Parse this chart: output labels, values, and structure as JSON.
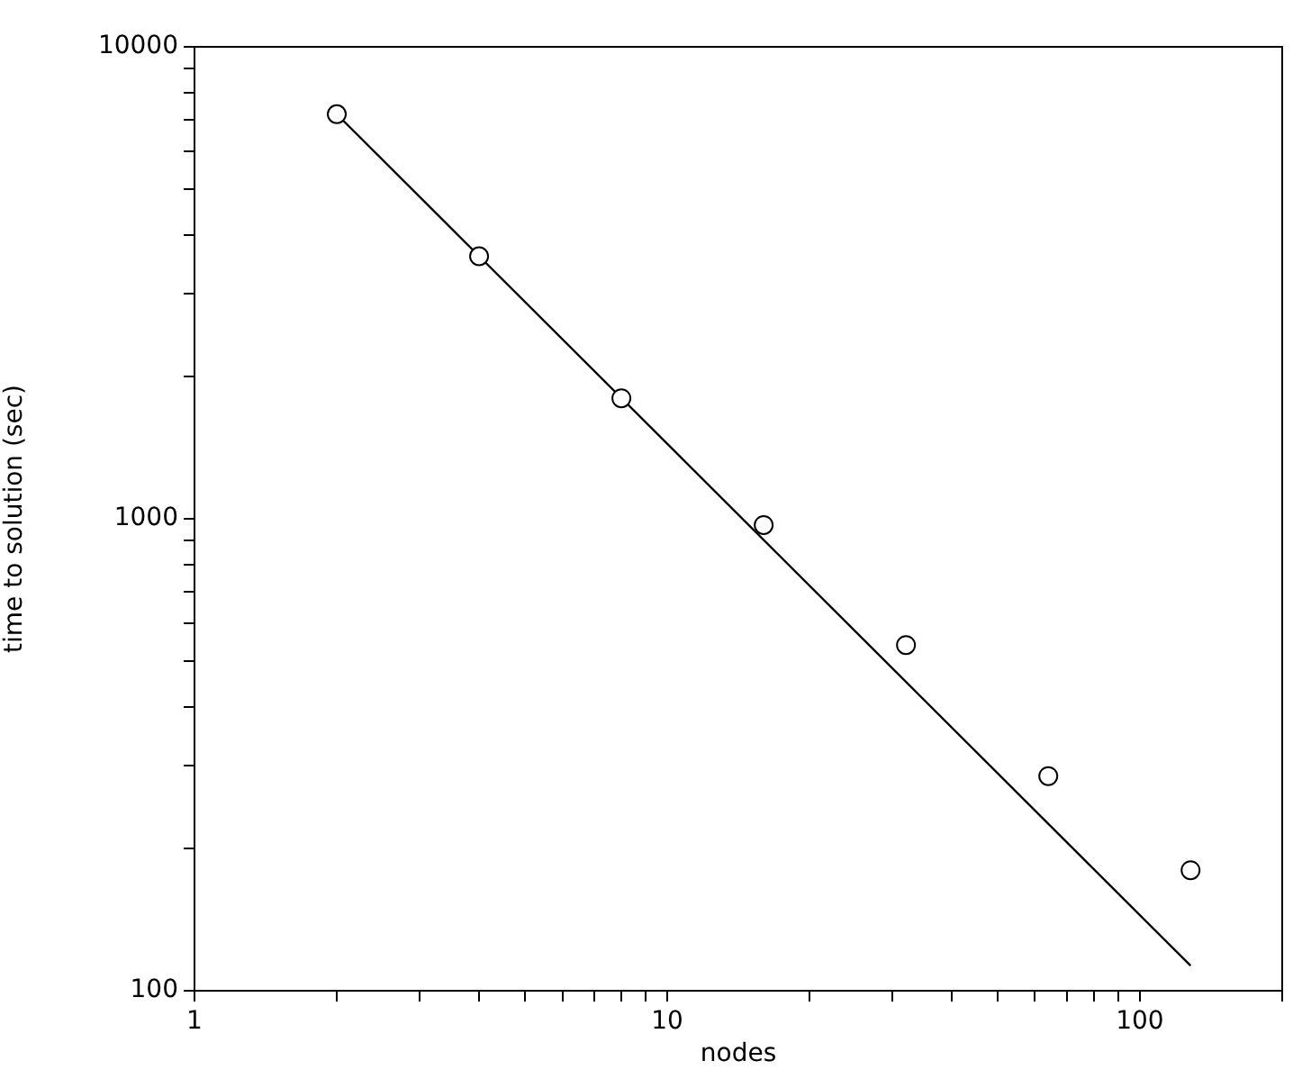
{
  "chart_data": {
    "type": "scatter",
    "xlabel": "nodes",
    "ylabel": "time to solution (sec)",
    "log": "xy",
    "grid": false,
    "legend": false,
    "marker": "circle",
    "xlim": [
      1,
      200
    ],
    "ylim": [
      100,
      10000
    ],
    "xticks": [
      1,
      {
        "value": 2,
        "label": null
      },
      {
        "value": 3,
        "label": null
      },
      {
        "value": 4,
        "label": null
      },
      {
        "value": 5,
        "label": null
      },
      {
        "value": 6,
        "label": null
      },
      {
        "value": 7,
        "label": null
      },
      {
        "value": 8,
        "label": null
      },
      {
        "value": 9,
        "label": null
      },
      10,
      {
        "value": 20,
        "label": null
      },
      {
        "value": 30,
        "label": null
      },
      {
        "value": 40,
        "label": null
      },
      {
        "value": 50,
        "label": null
      },
      {
        "value": 60,
        "label": null
      },
      {
        "value": 70,
        "label": null
      },
      {
        "value": 80,
        "label": null
      },
      {
        "value": 90,
        "label": null
      },
      100,
      {
        "value": 200,
        "label": null
      }
    ],
    "yticks": [
      100,
      {
        "value": 200,
        "label": null
      },
      {
        "value": 300,
        "label": null
      },
      {
        "value": 400,
        "label": null
      },
      {
        "value": 500,
        "label": null
      },
      {
        "value": 600,
        "label": null
      },
      {
        "value": 700,
        "label": null
      },
      {
        "value": 800,
        "label": null
      },
      {
        "value": 900,
        "label": null
      },
      1000,
      {
        "value": 2000,
        "label": null
      },
      {
        "value": 3000,
        "label": null
      },
      {
        "value": 4000,
        "label": null
      },
      {
        "value": 5000,
        "label": null
      },
      {
        "value": 6000,
        "label": null
      },
      {
        "value": 7000,
        "label": null
      },
      {
        "value": 8000,
        "label": null
      },
      {
        "value": 9000,
        "label": null
      },
      10000
    ],
    "series": [
      {
        "color": "#000000",
        "x": [
          2,
          4,
          8,
          16,
          32,
          64,
          128
        ],
        "values": [
          7200,
          3600,
          1800,
          970,
          540,
          285,
          180
        ]
      },
      {
        "type": "line",
        "color": "#000000",
        "x": [
          2,
          128
        ],
        "values": [
          7200,
          113
        ],
        "marker": "none"
      }
    ]
  }
}
